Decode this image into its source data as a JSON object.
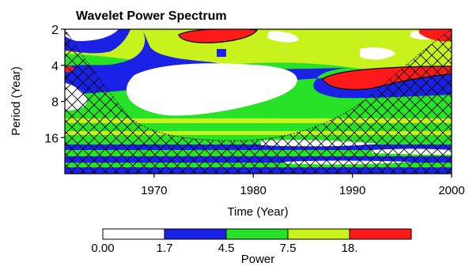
{
  "chart_data": {
    "type": "heatmap",
    "title": "Wavelet Power Spectrum",
    "xlabel": "Time (Year)",
    "ylabel": "Period (Year)",
    "xlim": [
      1961,
      2000
    ],
    "ylim_period": [
      2,
      32
    ],
    "y_scale": "log2, inverted",
    "x_ticks": [
      1970,
      1980,
      1990,
      2000
    ],
    "x_tick_labels": [
      "1970",
      "1980",
      "1990",
      "2000"
    ],
    "y_ticks": [
      2,
      4,
      8,
      16
    ],
    "y_tick_labels": [
      "2",
      "4",
      "8",
      "16"
    ],
    "colorbar": {
      "label": "Power",
      "levels": [
        0.0,
        1.7,
        4.5,
        7.5,
        18.0
      ],
      "level_labels": [
        "0.00",
        "1.7",
        "4.5",
        "7.5",
        "18."
      ],
      "colors": [
        "#ffffff",
        "#1a22e8",
        "#27e227",
        "#c8f21c",
        "#ff1a1a"
      ]
    },
    "cone_of_influence": "cross-hatched region (left, right and bottom edges)",
    "regions": [
      {
        "level": 0,
        "note": "white low-power zone, ~1967-1982, periods ~5-10 yr"
      },
      {
        "level": 4,
        "note": "red peak ~1972-1978, period ~2-2.5 yr"
      },
      {
        "level": 4,
        "note": "red peak ~1988-2000, period ~4-5 yr"
      },
      {
        "level": 4,
        "note": "small red spot ~1996-1999, period ~2 yr"
      },
      {
        "level": 3,
        "note": "yellow-green band ~1967-1985, period ~2.5-4 yr"
      },
      {
        "level": 1,
        "note": "blue patches scattered ~1960-1970, periods 2-8 yr"
      },
      {
        "level": 2,
        "note": "green bands at long periods 16-32 yr across full span"
      }
    ]
  }
}
